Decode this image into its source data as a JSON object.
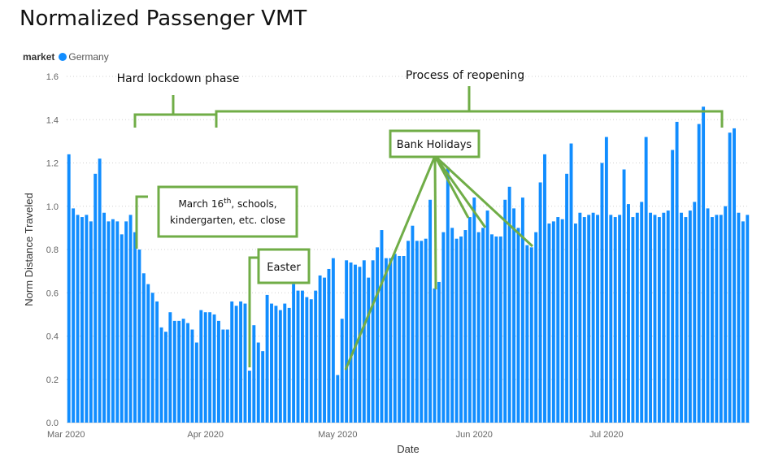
{
  "title": "Normalized Passenger VMT",
  "legend": {
    "title": "market",
    "entries": [
      "Germany"
    ]
  },
  "colors": {
    "bar": "#118DFF",
    "annotation": "#70AD47",
    "grid": "#D0D0D0"
  },
  "annotations": {
    "hard_lockdown": "Hard lockdown phase",
    "reopening": "Process of reopening",
    "march16_line1_pre": "March 16",
    "march16_sup": "th",
    "march16_line1_post": ", schools,",
    "march16_line2": "kindergarten, etc. close",
    "easter": "Easter",
    "bank_holidays": "Bank Holidays"
  },
  "chart_data": {
    "type": "bar",
    "title": "Normalized Passenger VMT",
    "xlabel": "Date",
    "ylabel": "Norm Distance Traveled",
    "ylim": [
      0,
      1.6
    ],
    "yticks": [
      "0.0",
      "0.2",
      "0.4",
      "0.6",
      "0.8",
      "1.0",
      "1.2",
      "1.4",
      "1.6"
    ],
    "xticks": [
      "Mar 2020",
      "Apr 2020",
      "May 2020",
      "Jun 2020",
      "Jul 2020"
    ],
    "grid": "horizontal dotted",
    "legend_position": "top-left",
    "start_date": "2020-03-01",
    "series": [
      {
        "name": "Germany",
        "values": [
          1.24,
          0.99,
          0.96,
          0.95,
          0.96,
          0.93,
          1.15,
          1.22,
          0.97,
          0.93,
          0.94,
          0.93,
          0.87,
          0.93,
          0.96,
          0.88,
          0.8,
          0.69,
          0.64,
          0.6,
          0.56,
          0.44,
          0.42,
          0.51,
          0.47,
          0.47,
          0.48,
          0.46,
          0.43,
          0.37,
          0.52,
          0.51,
          0.51,
          0.5,
          0.47,
          0.43,
          0.43,
          0.56,
          0.54,
          0.56,
          0.55,
          0.24,
          0.45,
          0.37,
          0.33,
          0.59,
          0.55,
          0.54,
          0.52,
          0.55,
          0.53,
          0.64,
          0.61,
          0.61,
          0.58,
          0.57,
          0.61,
          0.68,
          0.67,
          0.71,
          0.76,
          0.22,
          0.48,
          0.75,
          0.74,
          0.73,
          0.72,
          0.75,
          0.67,
          0.75,
          0.81,
          0.89,
          0.76,
          0.76,
          0.78,
          0.77,
          0.77,
          0.84,
          0.91,
          0.84,
          0.84,
          0.85,
          1.03,
          0.62,
          0.65,
          0.88,
          1.18,
          0.9,
          0.85,
          0.86,
          0.89,
          0.95,
          1.04,
          0.88,
          0.9,
          0.98,
          0.87,
          0.86,
          0.86,
          1.03,
          1.09,
          0.99,
          0.9,
          1.04,
          0.82,
          0.81,
          0.88,
          1.11,
          1.24,
          0.92,
          0.93,
          0.95,
          0.94,
          1.15,
          1.29,
          0.92,
          0.97,
          0.95,
          0.96,
          0.97,
          0.96,
          1.2,
          1.32,
          0.96,
          0.95,
          0.96,
          1.17,
          1.01,
          0.95,
          0.97,
          1.02,
          1.32,
          0.97,
          0.96,
          0.95,
          0.97,
          0.98,
          1.26,
          1.39,
          0.97,
          0.95,
          0.98,
          1.02,
          1.38,
          1.46,
          0.99,
          0.95,
          0.96,
          0.96,
          1.0,
          1.34,
          1.36,
          0.97,
          0.93,
          0.96
        ]
      }
    ]
  }
}
